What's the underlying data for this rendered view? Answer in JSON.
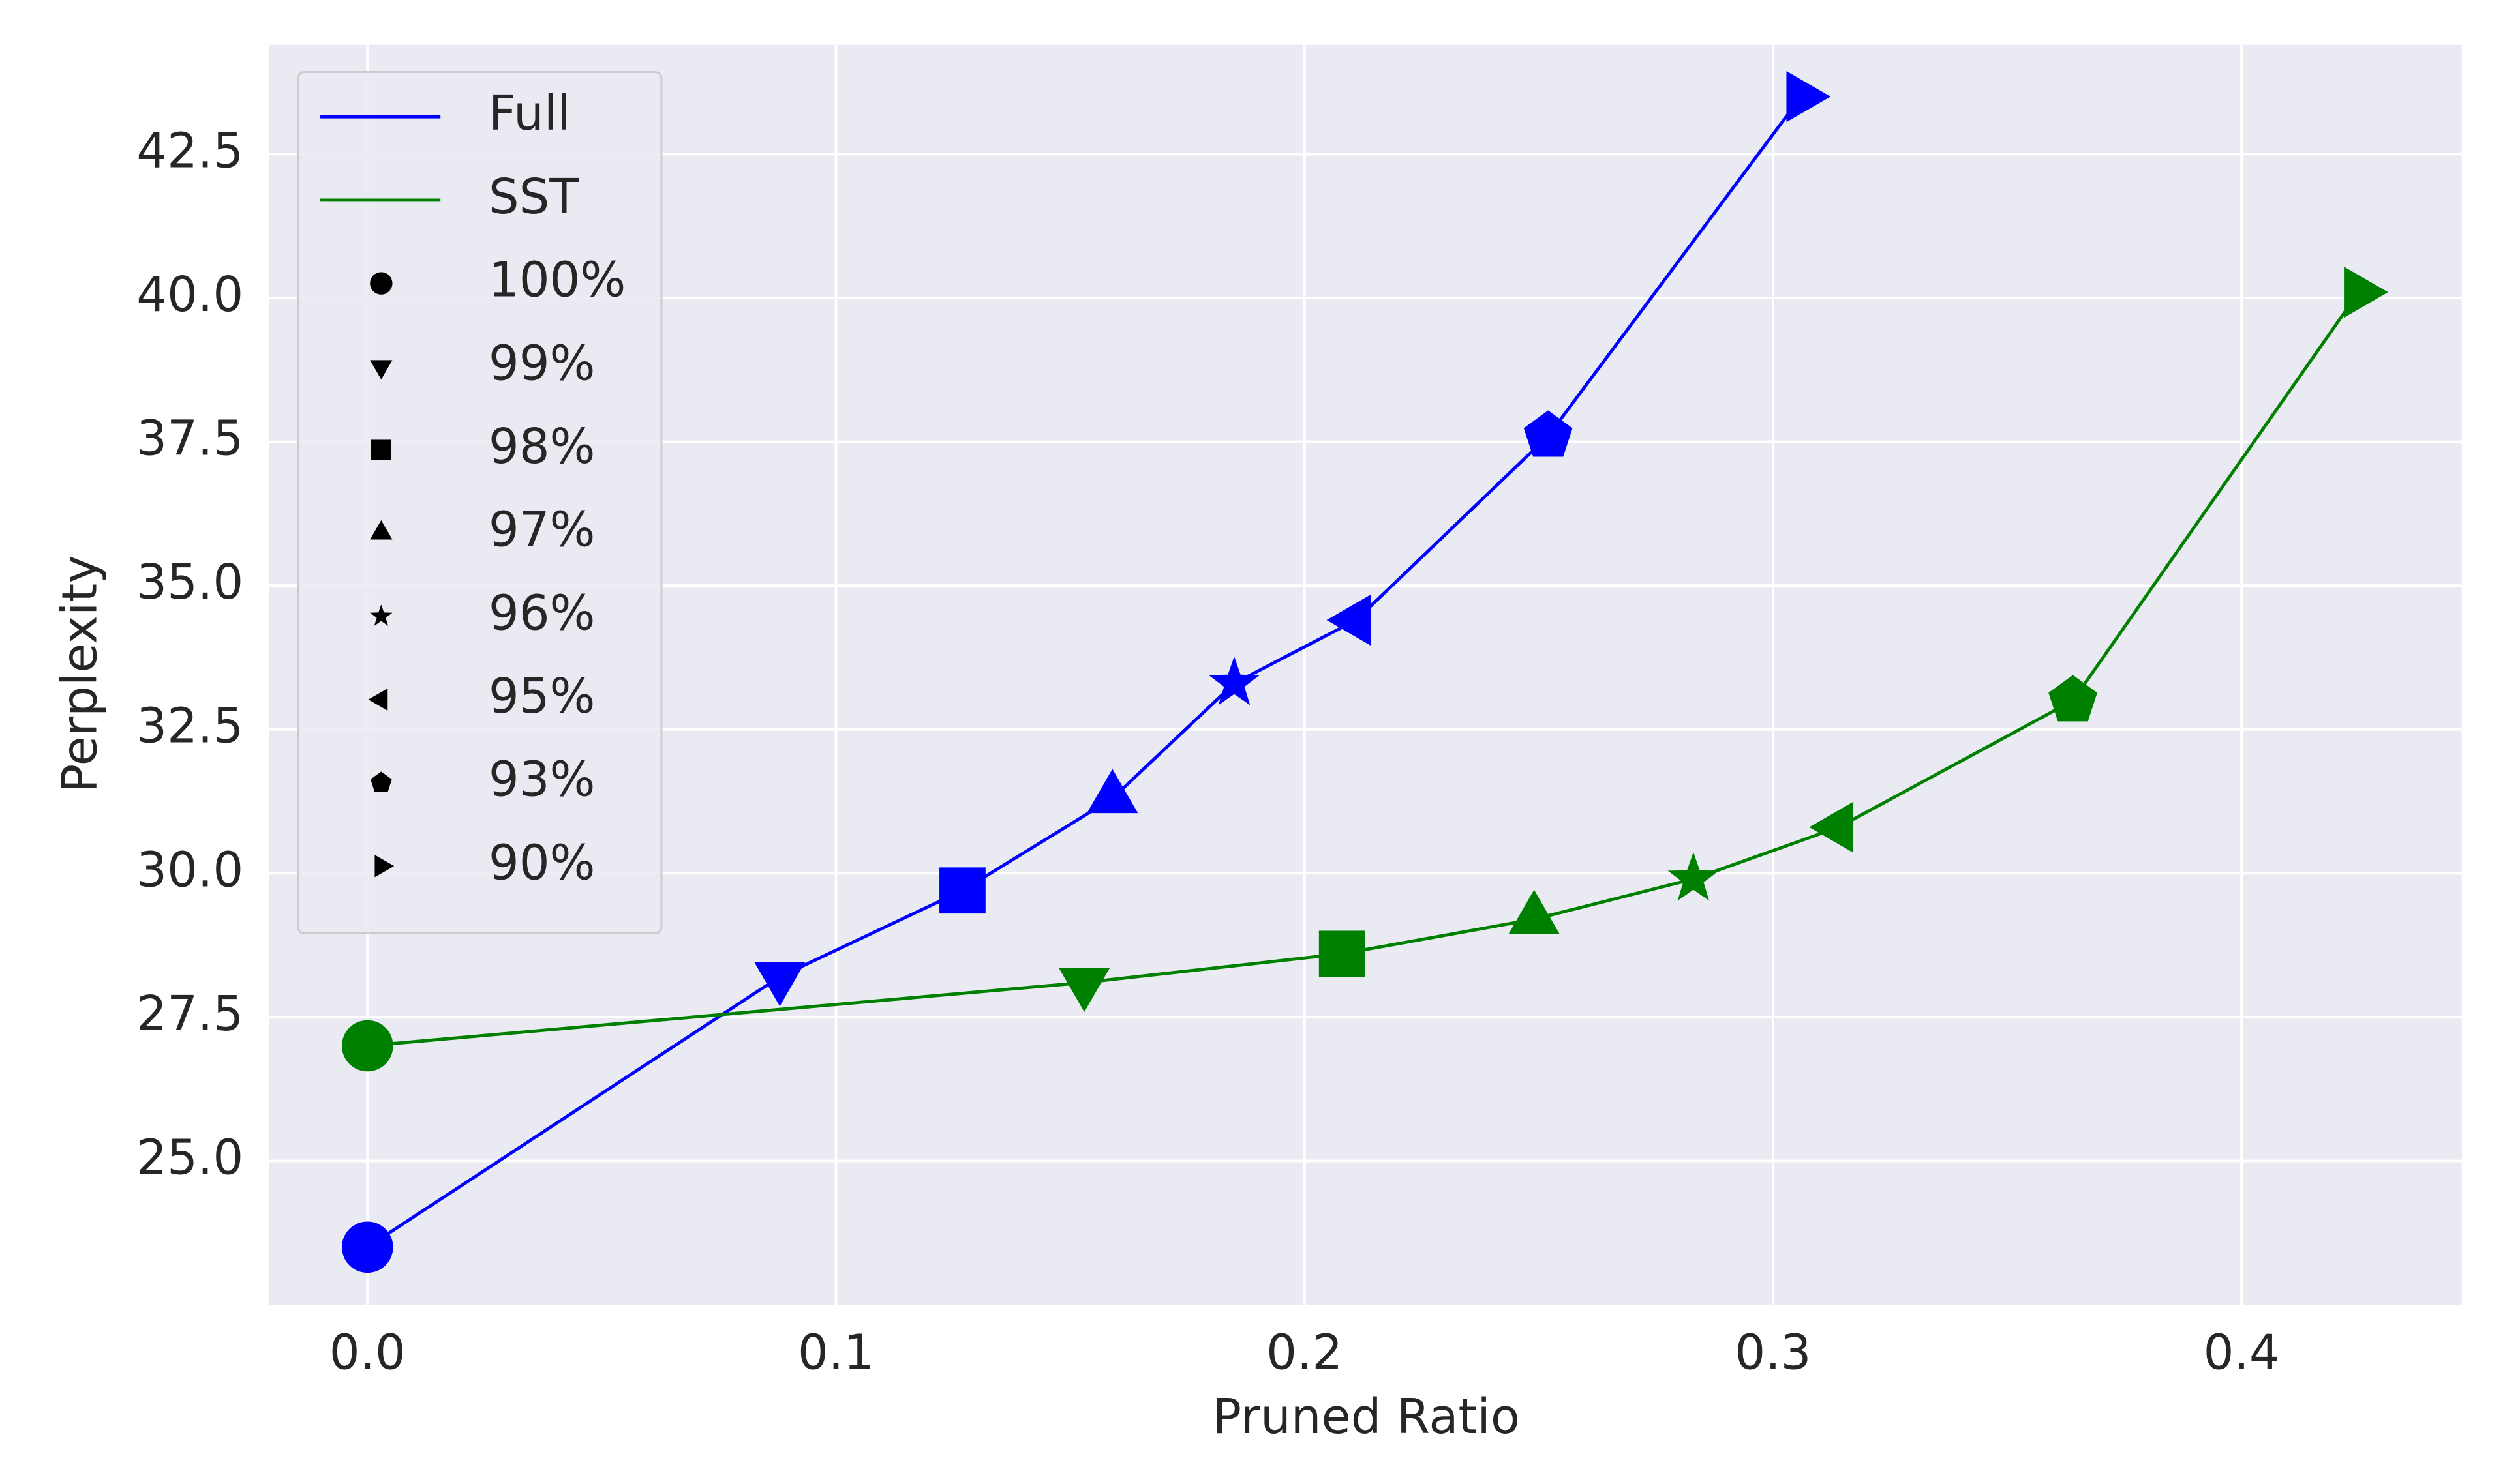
{
  "chart_data": {
    "type": "line",
    "x_label": "Pruned Ratio",
    "y_label": "Perplexity",
    "xlim": [
      -0.021,
      0.447
    ],
    "ylim": [
      22.5,
      44.4
    ],
    "xticks": [
      {
        "value": 0,
        "label": "0.0"
      },
      0.1,
      0.2,
      0.3,
      0.4
    ],
    "yticks": [
      {
        "value": 25,
        "label": "25.0"
      },
      27.5,
      {
        "value": 30,
        "label": "30.0"
      },
      32.5,
      {
        "value": 35,
        "label": "35.0"
      },
      37.5,
      {
        "value": 40,
        "label": "40.0"
      },
      42.5
    ],
    "grid": true,
    "legend": "upper left",
    "series": [
      {
        "name": "Full",
        "color": "#0000ff",
        "x": [
          0,
          0.088,
          0.127,
          0.159,
          0.185,
          0.211,
          0.252,
          0.306
        ],
        "values": [
          23.5,
          28.2,
          29.7,
          31.3,
          33.3,
          34.4,
          37.6,
          43.5
        ]
      },
      {
        "name": "SST",
        "color": "#008000",
        "x": [
          0,
          0.153,
          0.208,
          0.249,
          0.283,
          0.314,
          0.364,
          0.425
        ],
        "values": [
          27.0,
          28.1,
          28.6,
          29.2,
          29.9,
          30.8,
          33.0,
          40.1
        ]
      }
    ],
    "marker_legend": [
      {
        "label": "100%",
        "marker": "circle"
      },
      {
        "label": "99%",
        "marker": "triangle-down"
      },
      {
        "label": "98%",
        "marker": "square"
      },
      {
        "label": "97%",
        "marker": "triangle-up"
      },
      {
        "label": "96%",
        "marker": "star"
      },
      {
        "label": "95%",
        "marker": "triangle-left"
      },
      {
        "label": "93%",
        "marker": "pentagon"
      },
      {
        "label": "90%",
        "marker": "triangle-right"
      }
    ]
  }
}
